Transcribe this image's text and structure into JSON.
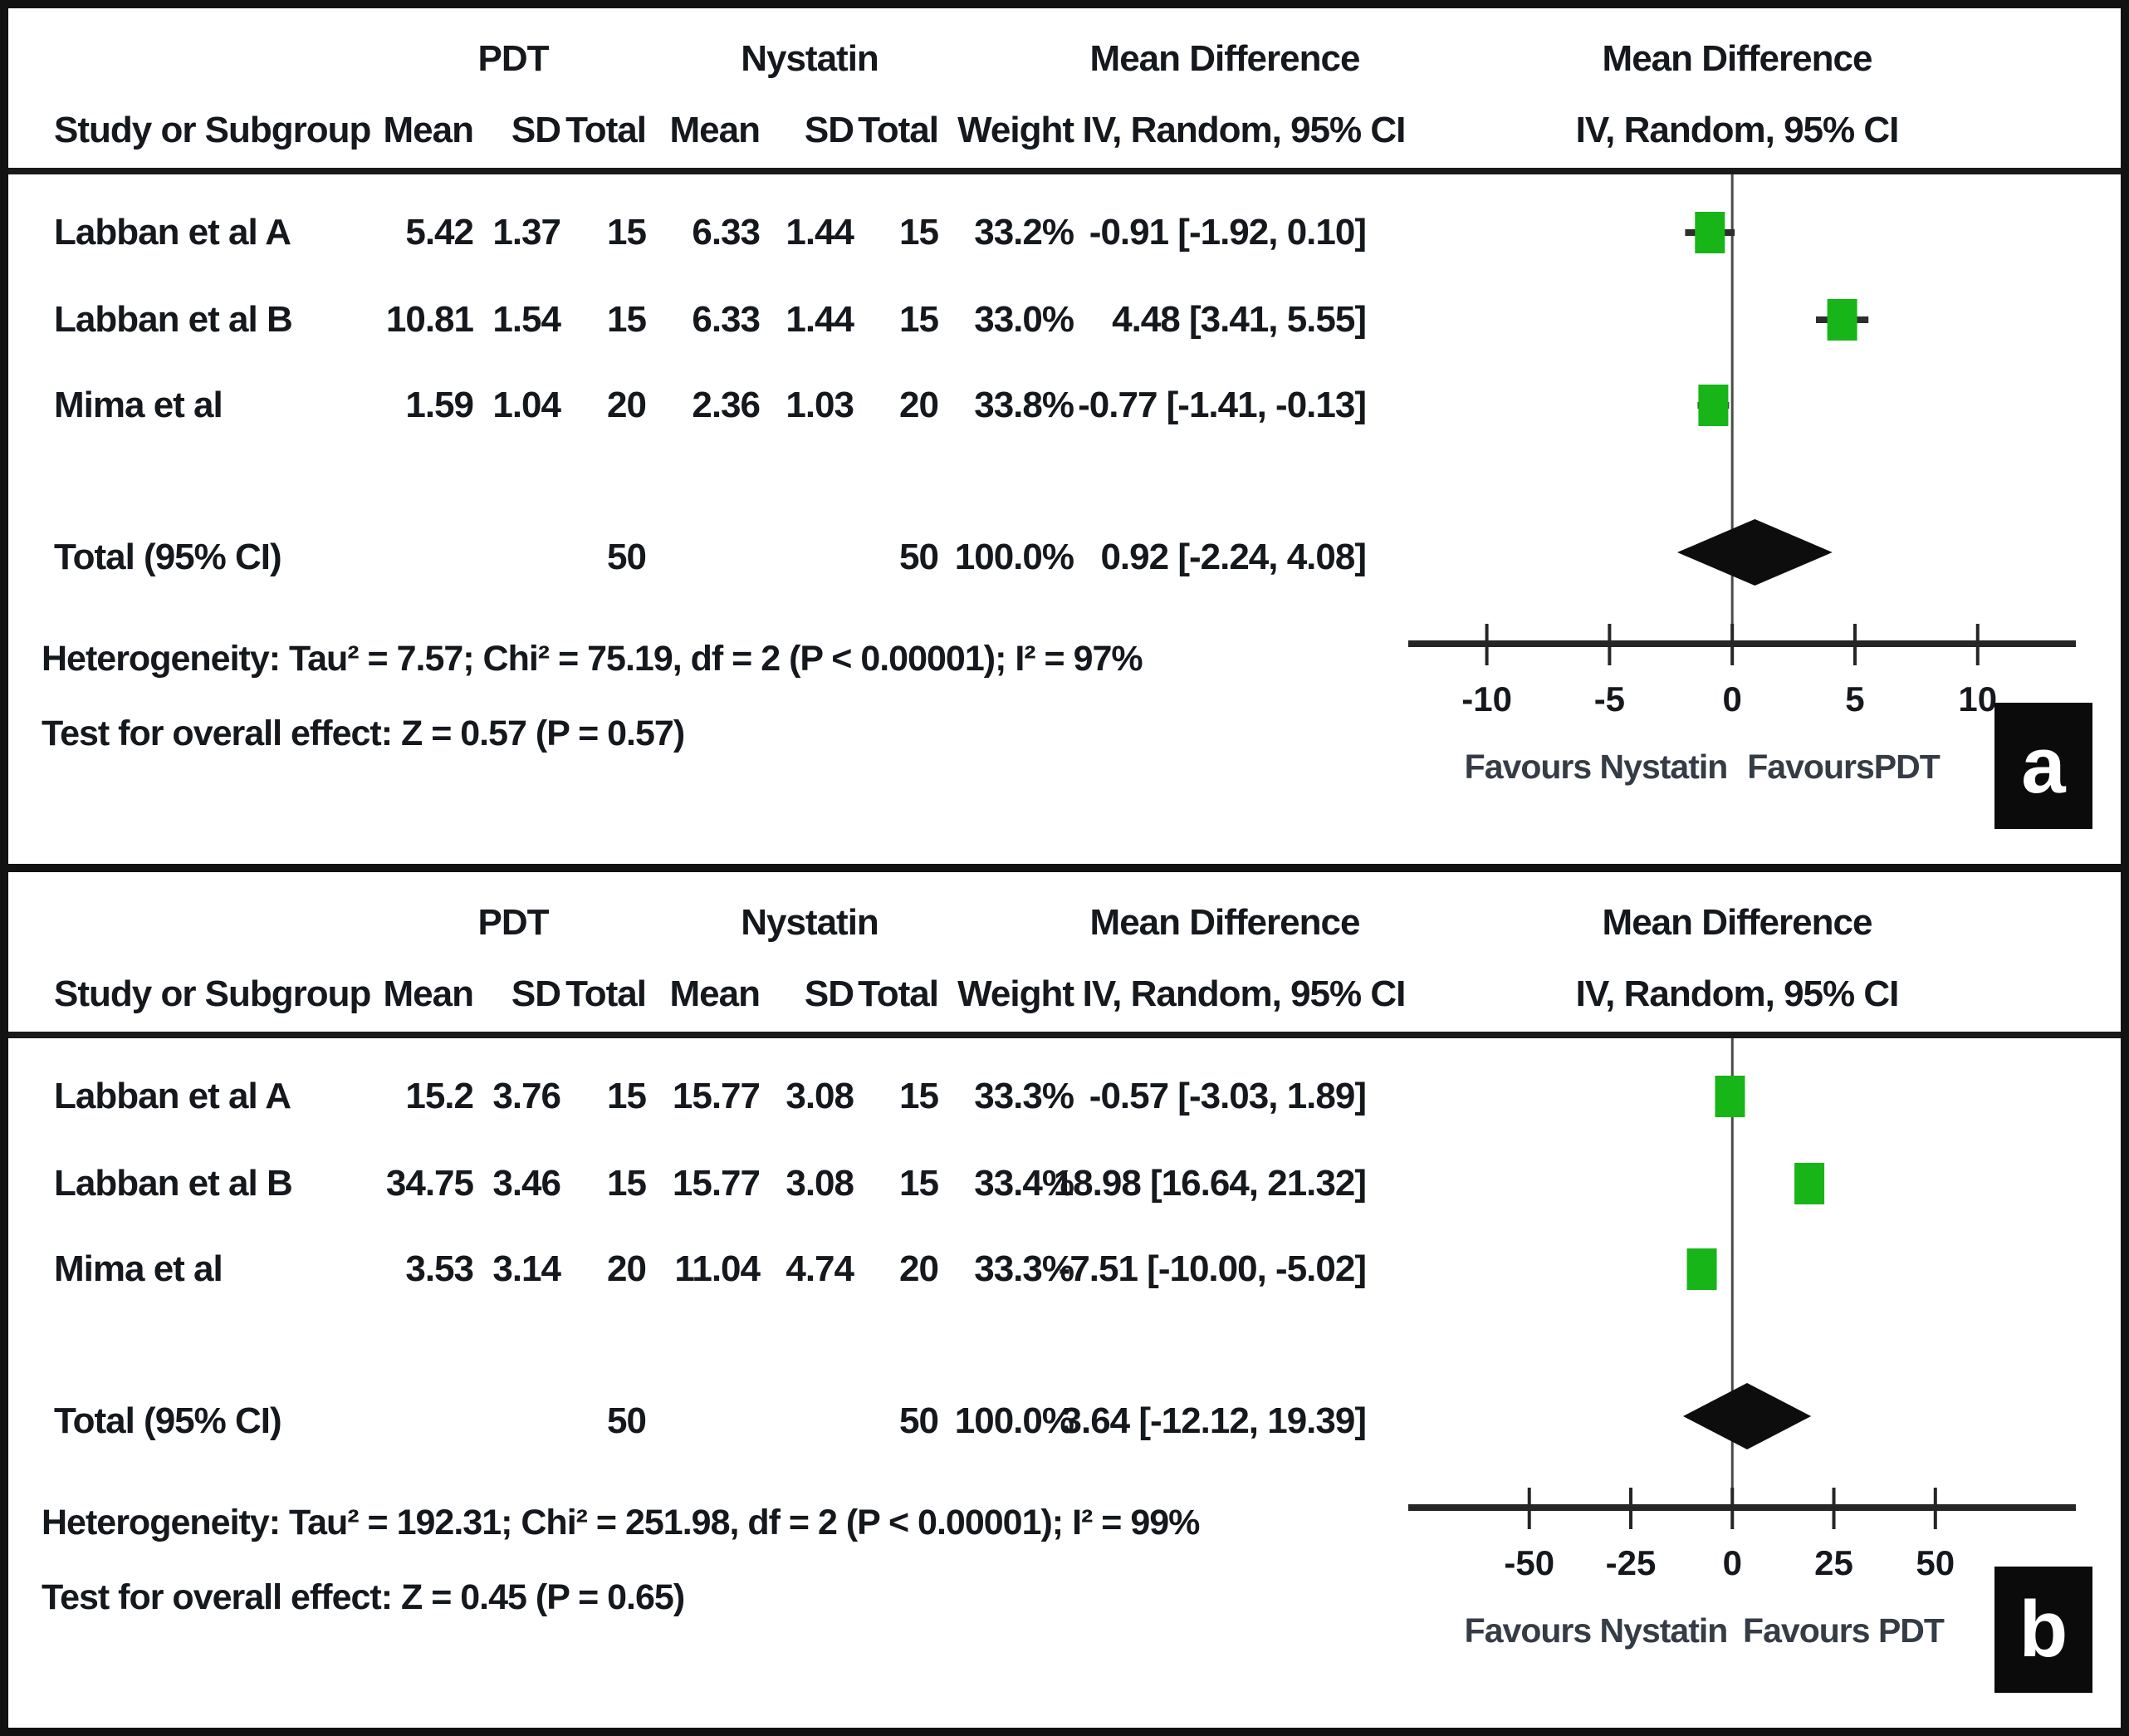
{
  "colors": {
    "marker_green": "#17b517",
    "diamond_black": "#0d0d0d",
    "axis_line": "#262626",
    "zero_line": "#4a4a4a",
    "text": "#15181c",
    "favours_text": "#363c45"
  },
  "chart_data": [
    {
      "type": "forest",
      "label": "a",
      "header": {
        "group1": "PDT",
        "group2": "Nystatin",
        "study": "Study or Subgroup",
        "mean": "Mean",
        "sd": "SD",
        "total": "Total",
        "weight": "Weight",
        "md": "Mean Difference",
        "iv": "IV, Random, 95% CI"
      },
      "rows": [
        {
          "study": "Labban et al A",
          "mean1": "5.42",
          "sd1": "1.37",
          "n1": "15",
          "mean2": "6.33",
          "sd2": "1.44",
          "n2": "15",
          "weight": "33.2%",
          "ci": "-0.91 [-1.92, 0.10]",
          "est": -0.91,
          "lo": -1.92,
          "hi": 0.1
        },
        {
          "study": "Labban et al B",
          "mean1": "10.81",
          "sd1": "1.54",
          "n1": "15",
          "mean2": "6.33",
          "sd2": "1.44",
          "n2": "15",
          "weight": "33.0%",
          "ci": "4.48 [3.41, 5.55]",
          "est": 4.48,
          "lo": 3.41,
          "hi": 5.55
        },
        {
          "study": "Mima et al",
          "mean1": "1.59",
          "sd1": "1.04",
          "n1": "20",
          "mean2": "2.36",
          "sd2": "1.03",
          "n2": "20",
          "weight": "33.8%",
          "ci": "-0.77 [-1.41, -0.13]",
          "est": -0.77,
          "lo": -1.41,
          "hi": -0.13
        }
      ],
      "total_row": {
        "label": "Total (95% CI)",
        "n1": "50",
        "n2": "50",
        "weight": "100.0%",
        "ci": "0.92 [-2.24, 4.08]",
        "est": 0.92,
        "lo": -2.24,
        "hi": 4.08
      },
      "heterogeneity": "Heterogeneity: Tau² = 7.57; Chi² = 75.19, df = 2 (P < 0.00001); I² = 97%",
      "overall_test": "Test for overall effect: Z = 0.57 (P = 0.57)",
      "axis": {
        "x_ticks": [
          -10,
          -5,
          0,
          5,
          10
        ],
        "x_range": [
          -13.2,
          14.0
        ],
        "favours_left": "Favours Nystatin",
        "favours_right": "FavoursPDT"
      }
    },
    {
      "type": "forest",
      "label": "b",
      "header": {
        "group1": "PDT",
        "group2": "Nystatin",
        "study": "Study or Subgroup",
        "mean": "Mean",
        "sd": "SD",
        "total": "Total",
        "weight": "Weight",
        "md": "Mean Difference",
        "iv": "IV, Random, 95% CI"
      },
      "rows": [
        {
          "study": "Labban et al A",
          "mean1": "15.2",
          "sd1": "3.76",
          "n1": "15",
          "mean2": "15.77",
          "sd2": "3.08",
          "n2": "15",
          "weight": "33.3%",
          "ci": "-0.57 [-3.03, 1.89]",
          "est": -0.57,
          "lo": -3.03,
          "hi": 1.89
        },
        {
          "study": "Labban et al B",
          "mean1": "34.75",
          "sd1": "3.46",
          "n1": "15",
          "mean2": "15.77",
          "sd2": "3.08",
          "n2": "15",
          "weight": "33.4%",
          "ci": "18.98 [16.64, 21.32]",
          "est": 18.98,
          "lo": 16.64,
          "hi": 21.32
        },
        {
          "study": "Mima et al",
          "mean1": "3.53",
          "sd1": "3.14",
          "n1": "20",
          "mean2": "11.04",
          "sd2": "4.74",
          "n2": "20",
          "weight": "33.3%",
          "ci": "-7.51 [-10.00, -5.02]",
          "est": -7.51,
          "lo": -10.0,
          "hi": -5.02
        }
      ],
      "total_row": {
        "label": "Total (95% CI)",
        "n1": "50",
        "n2": "50",
        "weight": "100.0%",
        "ci": "3.64 [-12.12, 19.39]",
        "est": 3.64,
        "lo": -12.12,
        "hi": 19.39
      },
      "heterogeneity": "Heterogeneity: Tau² = 192.31; Chi² = 251.98, df = 2 (P < 0.00001); I² = 99%",
      "overall_test": "Test for overall effect: Z = 0.45 (P = 0.65)",
      "axis": {
        "x_ticks": [
          -50,
          -25,
          0,
          25,
          50
        ],
        "x_range": [
          -79.8,
          84.6
        ],
        "favours_left": "Favours Nystatin",
        "favours_right": "Favours PDT"
      }
    }
  ]
}
